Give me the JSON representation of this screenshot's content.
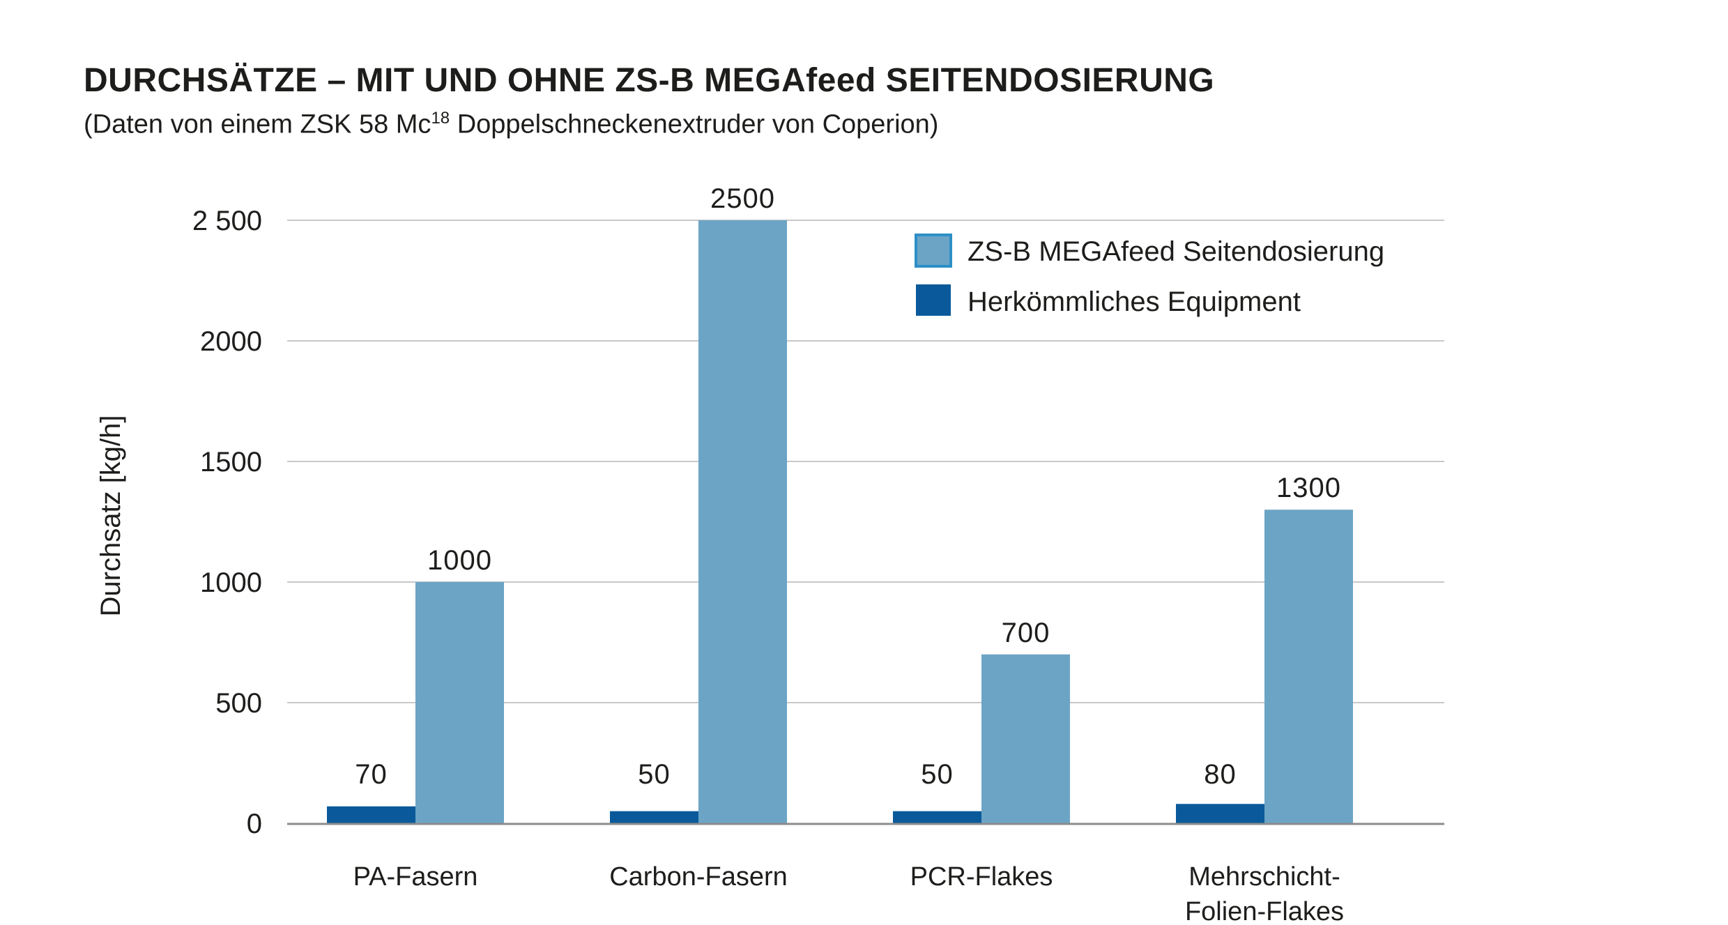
{
  "title": "DURCHSÄTZE – MIT UND OHNE ZS-B MEGAfeed SEITENDOSIERUNG",
  "subtitle": {
    "prefix": "(Daten von einem ZSK 58 Mc",
    "superscript": "18",
    "suffix": " Doppelschneckenextruder von Coperion)"
  },
  "colors": {
    "megafeed": "#6ca4c6",
    "conventional": "#0a5a9b",
    "legend_border": "#2d8fc7",
    "grid": "#c8c8c8",
    "axis": "#8c8c8c"
  },
  "chart_data": {
    "type": "bar",
    "title": "DURCHSÄTZE – MIT UND OHNE ZS-B MEGAfeed SEITENDOSIERUNG",
    "subtitle": "(Daten von einem ZSK 58 Mc18 Doppelschneckenextruder von Coperion)",
    "xlabel": "",
    "ylabel": "Durchsatz [kg/h]",
    "ylim": [
      0,
      2500
    ],
    "yticks": [
      0,
      500,
      1000,
      1500,
      2000,
      2500
    ],
    "ytick_labels": [
      "0",
      "500",
      "1000",
      "1500",
      "2000",
      "2 500"
    ],
    "grid": true,
    "legend_position": "top-right",
    "categories": [
      [
        "PA-Fasern"
      ],
      [
        "Carbon-Fasern"
      ],
      [
        "PCR-Flakes"
      ],
      [
        "Mehrschicht-",
        "Folien-Flakes"
      ]
    ],
    "series": [
      {
        "name": "Herkömmliches Equipment",
        "color": "#0a5a9b",
        "values": [
          70,
          50,
          50,
          80
        ],
        "labels": [
          "70",
          "50",
          "50",
          "80"
        ]
      },
      {
        "name": "ZS-B MEGAfeed Seitendosierung",
        "color": "#6ca4c6",
        "values": [
          1000,
          2500,
          700,
          1300
        ],
        "labels": [
          "1000",
          "2500",
          "700",
          "1300"
        ]
      }
    ],
    "legend": [
      "ZS-B MEGAfeed Seitendosierung",
      "Herkömmliches Equipment"
    ]
  }
}
